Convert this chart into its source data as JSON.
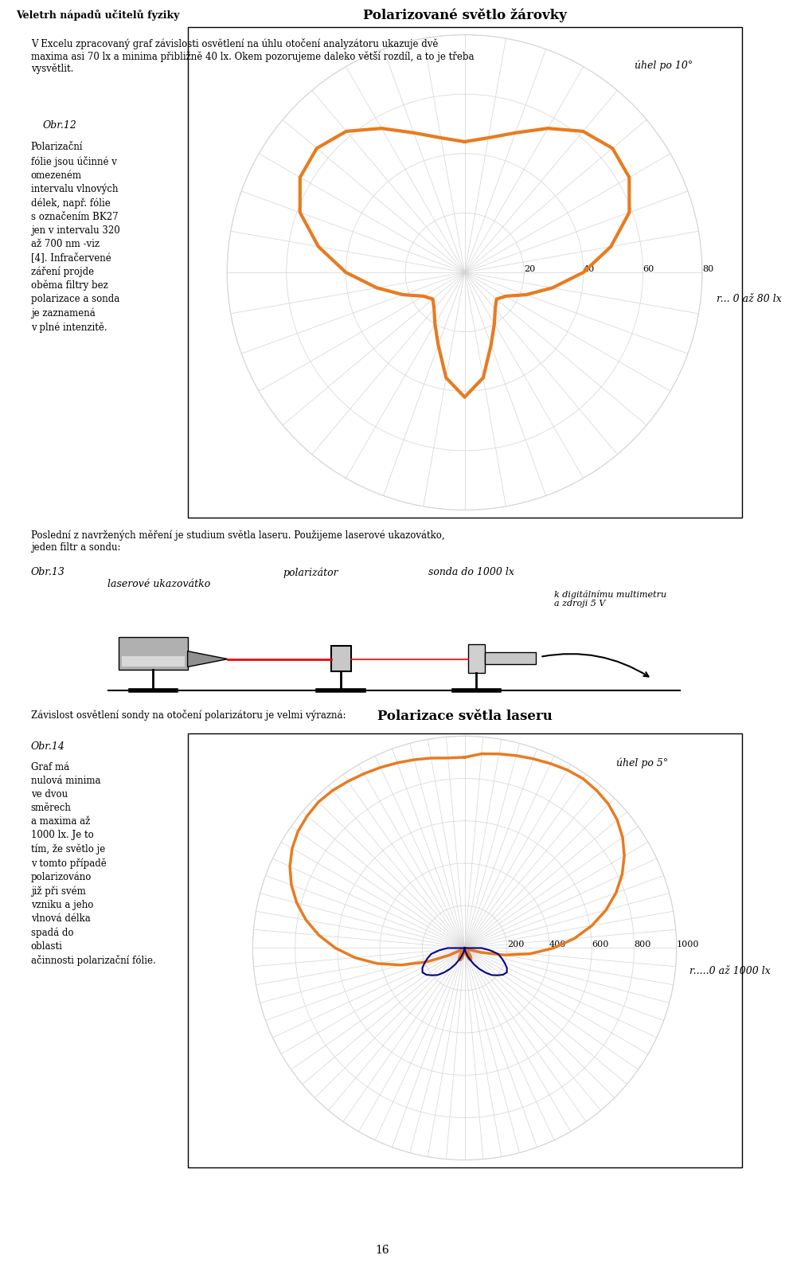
{
  "page_title": "Veletrh nápadů učitelů fyziky",
  "page_number": "16",
  "bg_color": "#ffffff",
  "text_block_1": "V Excelu zpracovaný graf závislosti osvětlení na úhlu otočení analyzátoru ukazuje dvě\nmaxima asi 70 lx a minima přibližně 40 lx. Okem pozorujeme daleko větší rozdíl, a to je třeba\nvysvětlit.",
  "obr12_label": "Obr.12",
  "chart1_title": "Polarizované světlo žárovky",
  "chart1_angle_label": "úhel po 10°",
  "chart1_r_label": "r... 0 až 80 lx",
  "chart1_rticks": [
    20,
    40,
    60,
    80
  ],
  "chart1_rmax": 80,
  "chart1_color": "#E87B20",
  "chart1_linewidth": 3.0,
  "chart1_data_angles_deg": [
    0,
    10,
    20,
    30,
    40,
    50,
    60,
    70,
    80,
    90,
    100,
    110,
    120,
    130,
    140,
    150,
    160,
    170,
    180,
    190,
    200,
    210,
    220,
    230,
    240,
    250,
    260,
    270,
    280,
    290,
    300,
    310,
    320,
    330,
    340,
    350,
    360
  ],
  "chart1_data_r": [
    44,
    46,
    50,
    56,
    62,
    65,
    64,
    59,
    50,
    40,
    30,
    22,
    16,
    14,
    16,
    20,
    26,
    36,
    42,
    36,
    26,
    20,
    16,
    14,
    16,
    22,
    30,
    40,
    50,
    59,
    64,
    65,
    62,
    56,
    50,
    46,
    44
  ],
  "text_block_2": "Polarizační\nfólie jsou účinné v\nomezeném\nintervalu vlnových\ndélek, např. fólie\ns označením BK27\njen v intervalu 320\naž 700 nm -viz\n[4]. Infračervené\nzáření projde\noběma filtry bez\npolarizace a sonda\nje zaznamená\nv plné intenzitě.",
  "text_block_3": "Poslední z navržených měření je studium světla laseru. Použijeme laserové ukazovátko,\njeden filtr a sondu:",
  "obr13_label": "Obr.13",
  "obr13_polarizator": "polarizátor",
  "obr13_laser": "laserové ukazovátko",
  "obr13_sonda": "sonda do 1000 lx",
  "obr13_digital": "k digitálnímu multimetru\na zdroji 5 V",
  "text_block_4": "Závislost osvětlení sondy na otočení polarizátoru je velmi výrazná:",
  "obr14_label": "Obr.14",
  "chart2_title": "Polarizace světla laseru",
  "chart2_angle_label": "úhel po 5°",
  "chart2_r_label": "r.....0 až 1000 lx",
  "chart2_rticks": [
    200,
    400,
    600,
    800,
    1000
  ],
  "chart2_rmax": 1000,
  "chart2_color_main": "#E87B20",
  "chart2_color_small": "#00008B",
  "chart2_linewidth": 2.5,
  "chart2_data_angles_deg": [
    0,
    5,
    10,
    15,
    20,
    25,
    30,
    35,
    40,
    45,
    50,
    55,
    60,
    65,
    70,
    75,
    80,
    85,
    90,
    95,
    100,
    105,
    110,
    115,
    120,
    125,
    130,
    135,
    140,
    145,
    150,
    155,
    160,
    165,
    170,
    175,
    180,
    185,
    190,
    195,
    200,
    205,
    210,
    215,
    220,
    225,
    230,
    235,
    240,
    245,
    250,
    255,
    260,
    265,
    270,
    275,
    280,
    285,
    290,
    295,
    300,
    305,
    310,
    315,
    320,
    325,
    330,
    335,
    340,
    345,
    350,
    355,
    360
  ],
  "chart2_data_r_main": [
    900,
    920,
    930,
    940,
    950,
    960,
    970,
    975,
    970,
    960,
    940,
    910,
    870,
    820,
    760,
    690,
    610,
    520,
    420,
    310,
    190,
    80,
    20,
    5,
    0,
    5,
    10,
    20,
    30,
    50,
    60,
    60,
    50,
    30,
    20,
    10,
    5,
    10,
    30,
    50,
    60,
    60,
    50,
    30,
    20,
    5,
    0,
    5,
    10,
    80,
    190,
    310,
    420,
    520,
    610,
    690,
    760,
    820,
    870,
    910,
    940,
    960,
    970,
    975,
    970,
    960,
    950,
    940,
    930,
    920,
    910,
    900,
    900
  ],
  "chart2_data_r_small": [
    0,
    0,
    0,
    0,
    0,
    0,
    0,
    0,
    0,
    0,
    0,
    0,
    0,
    0,
    0,
    0,
    0,
    0,
    80,
    120,
    160,
    180,
    200,
    220,
    230,
    220,
    200,
    180,
    150,
    120,
    90,
    60,
    40,
    20,
    10,
    5,
    0,
    5,
    10,
    20,
    40,
    60,
    90,
    120,
    150,
    180,
    200,
    220,
    230,
    220,
    200,
    180,
    160,
    120,
    80,
    0,
    0,
    0,
    0,
    0,
    0,
    0,
    0,
    0,
    0,
    0,
    0,
    0,
    0,
    0,
    0,
    0,
    0
  ],
  "text_block_5": "Graf má\nnulová minima\nve dvou\nsměrech\na maxima až\n1000 lx. Je to\ntím, že světlo je\nv tomto případě\npolarizováno\njiž při svém\nvzniku a jeho\nvlnová délka\nspadá do\noblasti\načinnosti polarizační fólie."
}
